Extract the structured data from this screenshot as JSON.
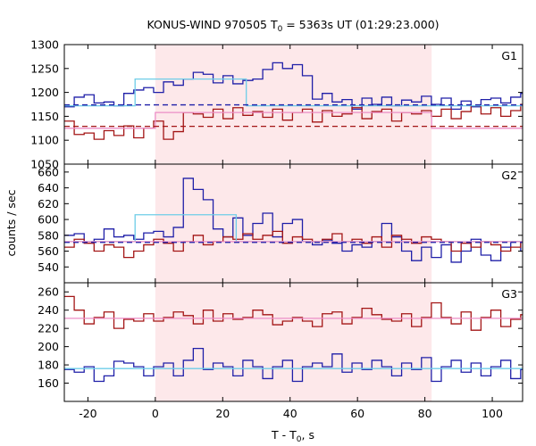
{
  "title_main": "KONUS-WIND 970505 T",
  "title_sub": "0",
  "title_rest": " = 5363s UT (01:29:23.000)",
  "xlabel_main": "T - T",
  "xlabel_sub": "0",
  "xlabel_rest": ", s",
  "ylabel": "counts / sec",
  "colors": {
    "blue": "#1f1fa8",
    "red": "#a31515",
    "light_blue": "#6ecde8",
    "pink_line": "#ec8ec7",
    "shade": "#fde8ea",
    "frame": "#000000"
  },
  "chart_data": [
    {
      "type": "line",
      "panel": "G1",
      "xlim": [
        -27,
        109
      ],
      "ylim": [
        1050,
        1300
      ],
      "yticks": [
        1050,
        1100,
        1150,
        1200,
        1250,
        1300
      ],
      "xticks": [
        -20,
        0,
        20,
        40,
        60,
        80,
        100
      ],
      "shaded_interval": [
        0,
        82
      ],
      "step_width": 2.944,
      "x_start": -27,
      "series": [
        {
          "color": "blue",
          "style": "step",
          "values": [
            1170,
            1190,
            1195,
            1178,
            1180,
            1172,
            1198,
            1205,
            1210,
            1200,
            1222,
            1215,
            1228,
            1242,
            1238,
            1220,
            1235,
            1218,
            1225,
            1228,
            1248,
            1262,
            1250,
            1258,
            1235,
            1186,
            1198,
            1180,
            1185,
            1165,
            1188,
            1175,
            1190,
            1172,
            1184,
            1180,
            1192,
            1175,
            1188,
            1165,
            1182,
            1170,
            1185,
            1188,
            1178,
            1190,
            1198,
            1182,
            1168,
            1185,
            1180,
            1178,
            1198,
            1195,
            1205,
            1210,
            1190,
            1200,
            1180,
            1208
          ]
        },
        {
          "color": "red",
          "style": "step",
          "values": [
            1140,
            1112,
            1115,
            1102,
            1120,
            1110,
            1130,
            1105,
            1125,
            1140,
            1102,
            1118,
            1158,
            1155,
            1148,
            1165,
            1145,
            1168,
            1152,
            1160,
            1148,
            1165,
            1142,
            1158,
            1165,
            1138,
            1162,
            1150,
            1155,
            1168,
            1145,
            1160,
            1165,
            1140,
            1158,
            1155,
            1162,
            1150,
            1165,
            1145,
            1160,
            1172,
            1155,
            1168,
            1150,
            1162,
            1175,
            1160,
            1168,
            1145,
            1105,
            1140,
            1112,
            1132,
            1110,
            1148,
            1120,
            1135,
            1108,
            1128
          ]
        },
        {
          "color": "light_blue",
          "style": "step",
          "x": [
            -27,
            -6,
            -6,
            27,
            27,
            109
          ],
          "values": [
            1172,
            1172,
            1228,
            1228,
            1172,
            1172
          ]
        },
        {
          "color": "pink_line",
          "style": "step",
          "x": [
            -27,
            0,
            0,
            82,
            82,
            109
          ],
          "values": [
            1125,
            1125,
            1158,
            1158,
            1125,
            1125
          ]
        },
        {
          "color": "blue",
          "style": "dashed",
          "x": [
            -27,
            109
          ],
          "values": [
            1174,
            1174
          ]
        },
        {
          "color": "red",
          "style": "dashed",
          "x": [
            -27,
            109
          ],
          "values": [
            1129,
            1129
          ]
        }
      ]
    },
    {
      "type": "line",
      "panel": "G2",
      "xlim": [
        -27,
        109
      ],
      "ylim": [
        520,
        670
      ],
      "yticks": [
        520,
        540,
        560,
        580,
        600,
        620,
        640,
        660
      ],
      "xticks": [
        -20,
        0,
        20,
        40,
        60,
        80,
        100
      ],
      "shaded_interval": [
        0,
        82
      ],
      "step_width": 2.944,
      "x_start": -27,
      "series": [
        {
          "color": "blue",
          "style": "step",
          "values": [
            580,
            582,
            572,
            575,
            588,
            578,
            580,
            575,
            583,
            585,
            578,
            590,
            652,
            638,
            625,
            588,
            578,
            602,
            580,
            595,
            608,
            578,
            595,
            600,
            572,
            568,
            574,
            570,
            560,
            568,
            565,
            572,
            595,
            578,
            560,
            548,
            565,
            552,
            568,
            546,
            560,
            575,
            555,
            548,
            565,
            572,
            560,
            552,
            568,
            575,
            572,
            598,
            570,
            575,
            565,
            572,
            560,
            572,
            575,
            565
          ]
        },
        {
          "color": "red",
          "style": "step",
          "values": [
            565,
            575,
            570,
            560,
            568,
            565,
            552,
            560,
            568,
            575,
            570,
            560,
            572,
            580,
            568,
            572,
            578,
            575,
            582,
            575,
            580,
            585,
            570,
            578,
            575,
            572,
            575,
            582,
            572,
            575,
            570,
            578,
            565,
            580,
            575,
            570,
            578,
            575,
            572,
            560,
            570,
            565,
            572,
            568,
            560,
            565,
            572,
            568,
            575,
            570,
            572,
            578,
            575,
            568,
            572,
            575,
            580,
            570,
            575,
            572
          ]
        },
        {
          "color": "light_blue",
          "style": "step",
          "x": [
            -27,
            -6,
            -6,
            24,
            24,
            109
          ],
          "values": [
            572,
            572,
            606,
            606,
            572,
            572
          ]
        },
        {
          "color": "pink_line",
          "style": "step",
          "x": [
            -27,
            109
          ],
          "values": [
            572,
            572
          ]
        },
        {
          "color": "blue",
          "style": "dashed",
          "x": [
            -27,
            109
          ],
          "values": [
            571,
            571
          ]
        }
      ]
    },
    {
      "type": "line",
      "panel": "G3",
      "xlim": [
        -27,
        109
      ],
      "ylim": [
        140,
        270
      ],
      "yticks": [
        140,
        160,
        180,
        200,
        220,
        240,
        260
      ],
      "xticks": [
        -20,
        0,
        20,
        40,
        60,
        80,
        100
      ],
      "shaded_interval": [
        0,
        82
      ],
      "step_width": 2.944,
      "x_start": -27,
      "series": [
        {
          "color": "red",
          "style": "step",
          "values": [
            255,
            240,
            225,
            232,
            238,
            220,
            230,
            228,
            236,
            228,
            232,
            238,
            234,
            225,
            240,
            228,
            236,
            230,
            232,
            240,
            235,
            224,
            228,
            232,
            228,
            222,
            236,
            238,
            225,
            232,
            242,
            235,
            230,
            228,
            236,
            222,
            232,
            248,
            232,
            225,
            238,
            218,
            232,
            240,
            222,
            230,
            235,
            228,
            232,
            218,
            238,
            224,
            232,
            228,
            225,
            238,
            222,
            232,
            242,
            238
          ]
        },
        {
          "color": "blue",
          "style": "step",
          "values": [
            175,
            172,
            178,
            162,
            168,
            184,
            182,
            178,
            168,
            178,
            182,
            168,
            185,
            198,
            175,
            182,
            178,
            168,
            185,
            178,
            165,
            178,
            185,
            162,
            178,
            182,
            178,
            192,
            172,
            182,
            175,
            185,
            178,
            168,
            182,
            175,
            188,
            162,
            178,
            185,
            172,
            182,
            168,
            178,
            185,
            165,
            175,
            182,
            162,
            185,
            178,
            168,
            182,
            175,
            185,
            172,
            178,
            188,
            178,
            162
          ]
        },
        {
          "color": "pink_line",
          "style": "step",
          "x": [
            -27,
            109
          ],
          "values": [
            231,
            231
          ]
        },
        {
          "color": "light_blue",
          "style": "step",
          "x": [
            -27,
            109
          ],
          "values": [
            176,
            176
          ]
        }
      ]
    }
  ]
}
